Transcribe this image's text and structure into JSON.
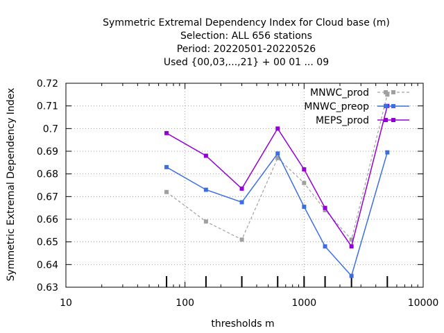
{
  "chart_data": {
    "type": "line",
    "title_lines": [
      "Symmetric Extremal Dependency Index  for Cloud base (m)",
      "Selection: ALL    656 stations",
      "Period: 20220501-20220526",
      "Used {00,03,...,21} + 00 01 ... 09"
    ],
    "xlabel": "thresholds m",
    "ylabel": "Symmetric Extremal Dependency Index",
    "x_scale": "log",
    "xlim": [
      10,
      10000
    ],
    "ylim": [
      0.63,
      0.72
    ],
    "x_ticks": [
      10,
      100,
      1000,
      10000
    ],
    "x_tick_labels": [
      "10",
      "100",
      "1000",
      "10000"
    ],
    "y_ticks": [
      0.63,
      0.64,
      0.65,
      0.66,
      0.67,
      0.68,
      0.69,
      0.7,
      0.71,
      0.72
    ],
    "y_tick_labels": [
      "0.63",
      "0.64",
      "0.65",
      "0.66",
      "0.67",
      "0.68",
      "0.69",
      "0.7",
      "0.71",
      "0.72"
    ],
    "grid": true,
    "legend_position": "top-right",
    "threshold_marks": [
      70,
      150,
      300,
      600,
      1000,
      1500,
      2500,
      5000
    ],
    "x": [
      70,
      150,
      300,
      600,
      1000,
      1500,
      2500,
      5000
    ],
    "series": [
      {
        "name": "MNWC_prod",
        "color": "#a0a0a0",
        "dash": true,
        "values": [
          0.672,
          0.659,
          0.651,
          0.687,
          0.676,
          0.664,
          0.651,
          0.715
        ]
      },
      {
        "name": "MNWC_preop",
        "color": "#3d6ee0",
        "dash": false,
        "values": [
          0.683,
          0.673,
          0.6675,
          0.689,
          0.6655,
          0.648,
          0.635,
          0.6895
        ]
      },
      {
        "name": "MEPS_prod",
        "color": "#9400d3",
        "dash": false,
        "values": [
          0.698,
          0.688,
          0.6735,
          0.7,
          0.682,
          0.665,
          0.648,
          0.71
        ]
      }
    ]
  }
}
